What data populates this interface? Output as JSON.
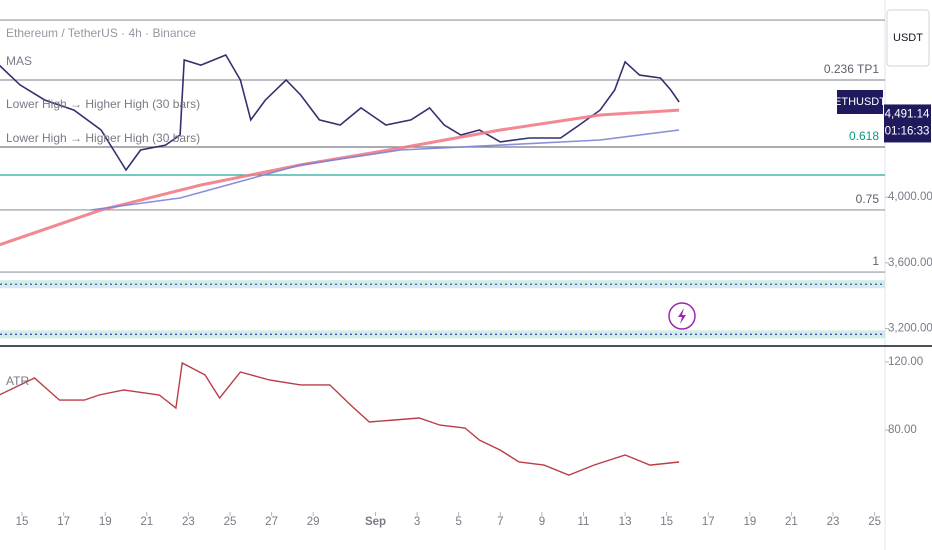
{
  "chart_data": [
    {
      "type": "line",
      "title": "Ethereum / TetherUS · 4h · Binance",
      "indicators": [
        "MAS",
        "Lower High → Higher High (30 bars)",
        "Lower High → Higher High (30 bars)"
      ],
      "currency": "USDT",
      "symbol": "ETHUSDT",
      "last_price": {
        "value": 4491.14,
        "label": "4,491.14"
      },
      "countdown": "01:16:33",
      "xlim": [
        -1.06,
        41.5
      ],
      "ylim": [
        3100,
        5200
      ],
      "yticks": [
        {
          "value": 4000,
          "label": "4,000.00"
        },
        {
          "value": 3600,
          "label": "3,600.00"
        },
        {
          "value": 3200,
          "label": "3,200.00"
        }
      ],
      "levels": [
        {
          "value": 5078,
          "color": "#9598a1"
        },
        {
          "value": 4713,
          "label": "0.236 TP1",
          "color": "#9598a1"
        },
        {
          "value": 4305,
          "label": "0.618",
          "color": "#787b86",
          "label_color": "#089981"
        },
        {
          "value": 4135,
          "color": "#26a69a"
        },
        {
          "value": 3922,
          "label": "0.75",
          "color": "#9598a1"
        },
        {
          "value": 3544,
          "label": "1",
          "color": "#9598a1"
        }
      ],
      "zones": [
        3470,
        3165
      ],
      "series": [
        {
          "color": "#1f1a5e",
          "width": 1.6,
          "x": [
            -1.1,
            -0.1,
            1.1,
            2.5,
            3.8,
            5.0,
            5.7,
            6.9,
            7.6,
            7.8,
            8.6,
            9.8,
            10.5,
            11.0,
            11.7,
            12.7,
            13.4,
            14.3,
            15.3,
            16.3,
            17.5,
            18.7,
            19.6,
            20.3,
            21.1,
            22.0,
            23.0,
            24.4,
            25.9,
            26.8,
            27.8,
            28.5,
            29.0,
            29.7,
            30.7,
            31.2,
            31.6
          ],
          "values": [
            4804,
            4683,
            4591,
            4530,
            4409,
            4165,
            4287,
            4317,
            4378,
            4835,
            4804,
            4865,
            4713,
            4470,
            4591,
            4713,
            4622,
            4470,
            4439,
            4543,
            4439,
            4470,
            4543,
            4439,
            4378,
            4409,
            4336,
            4360,
            4360,
            4439,
            4530,
            4652,
            4823,
            4743,
            4725,
            4652,
            4579
          ]
        },
        {
          "color": "#f07b86",
          "width": 3,
          "x": [
            -1.1,
            3.8,
            8.6,
            13.4,
            18.2,
            23.0,
            27.8,
            31.6
          ],
          "values": [
            3709,
            3922,
            4074,
            4196,
            4299,
            4409,
            4500,
            4530
          ]
        },
        {
          "color": "#7b83d6",
          "width": 1.6,
          "x": [
            3.3,
            7.6,
            13.4,
            18.2,
            23.0,
            27.8,
            31.6
          ],
          "values": [
            3922,
            3995,
            4196,
            4287,
            4317,
            4348,
            4409
          ]
        }
      ]
    },
    {
      "type": "line",
      "title": "ATR",
      "xlim": [
        -1.06,
        41.5
      ],
      "ylim": [
        33,
        128.8
      ],
      "yticks": [
        {
          "value": 120,
          "label": "120.00"
        },
        {
          "value": 80,
          "label": "80.00"
        }
      ],
      "xticks": [
        {
          "value": 0,
          "label": "15"
        },
        {
          "value": 2,
          "label": "17"
        },
        {
          "value": 4,
          "label": "19"
        },
        {
          "value": 6,
          "label": "21"
        },
        {
          "value": 8,
          "label": "23"
        },
        {
          "value": 10,
          "label": "25"
        },
        {
          "value": 12,
          "label": "27"
        },
        {
          "value": 14,
          "label": "29"
        },
        {
          "value": 17,
          "label": "Sep"
        },
        {
          "value": 19,
          "label": "3"
        },
        {
          "value": 21,
          "label": "5"
        },
        {
          "value": 23,
          "label": "7"
        },
        {
          "value": 25,
          "label": "9"
        },
        {
          "value": 27,
          "label": "11"
        },
        {
          "value": 29,
          "label": "13"
        },
        {
          "value": 31,
          "label": "15"
        },
        {
          "value": 33,
          "label": "17"
        },
        {
          "value": 35,
          "label": "19"
        },
        {
          "value": 37,
          "label": "21"
        },
        {
          "value": 39,
          "label": "23"
        },
        {
          "value": 41,
          "label": "25"
        }
      ],
      "series": [
        {
          "color": "#b22833",
          "width": 1.4,
          "x": [
            -1.1,
            0.6,
            1.8,
            3.0,
            3.7,
            4.9,
            6.6,
            7.4,
            7.7,
            8.8,
            9.5,
            10.5,
            11.9,
            13.4,
            14.8,
            15.8,
            16.7,
            17.9,
            19.1,
            20.1,
            21.3,
            22.0,
            23.0,
            23.9,
            25.1,
            26.3,
            27.5,
            29.0,
            30.2,
            31.6
          ],
          "values": [
            100.6,
            110.6,
            97.6,
            97.6,
            100.6,
            103.5,
            100.6,
            92.9,
            119.4,
            112.4,
            98.8,
            114.1,
            109.4,
            106.5,
            106.5,
            94.7,
            84.7,
            85.9,
            87.1,
            82.9,
            81.2,
            74.1,
            68.2,
            61.2,
            59.4,
            53.5,
            59.4,
            65.3,
            59.4,
            61.2
          ]
        }
      ]
    }
  ]
}
